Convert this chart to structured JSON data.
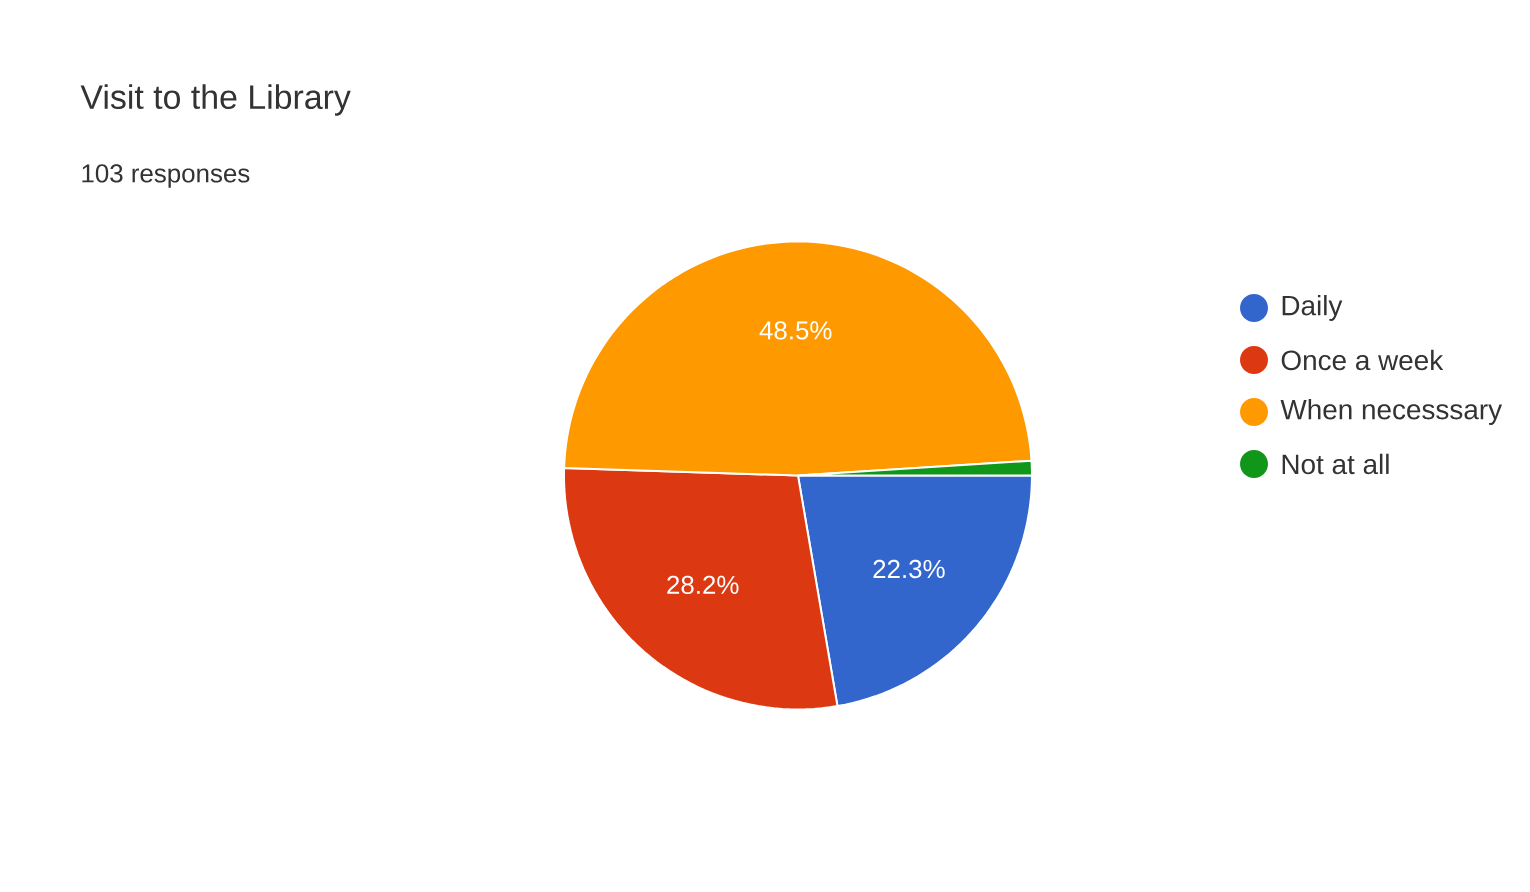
{
  "chart_data": {
    "type": "pie",
    "title": "Visit to the Library",
    "subtitle": "103 responses",
    "categories": [
      "Daily",
      "Once a week",
      "When necesssary",
      "Not at all"
    ],
    "values": [
      22.3,
      28.2,
      48.5,
      1.0
    ],
    "colors": [
      "#3366cc",
      "#dc3912",
      "#ff9900",
      "#109618"
    ],
    "value_labels": [
      "22.3%",
      "28.2%",
      "48.5%",
      null
    ],
    "legend": "right"
  }
}
